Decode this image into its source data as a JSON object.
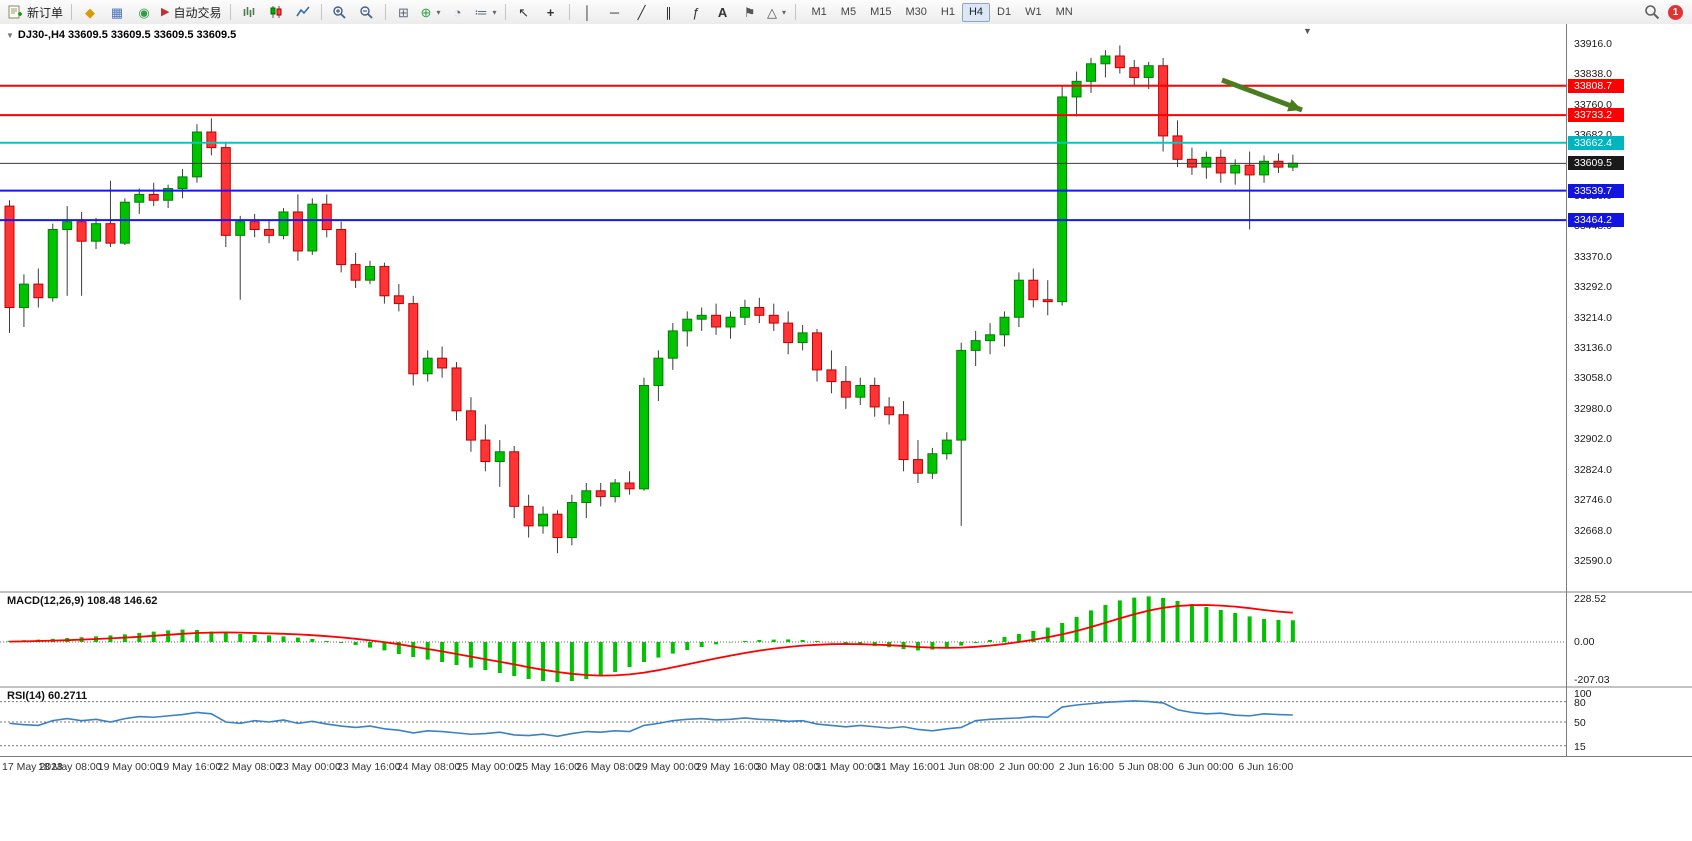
{
  "toolbar": {
    "new_order_label": "新订单",
    "auto_trading_label": "自动交易",
    "timeframes": [
      "M1",
      "M5",
      "M15",
      "M30",
      "H1",
      "H4",
      "D1",
      "W1",
      "MN"
    ],
    "active_timeframe": "H4",
    "notification_count": "1",
    "glyphs": {
      "metaeditor": "◆",
      "profiles": "▦",
      "help": "◉",
      "autoplay": "▶",
      "tile_windows": "⊞",
      "new_chart": "⊕",
      "clock": "◔",
      "indicator_list": "≔",
      "cursor": "↖",
      "crosshair": "+",
      "vline": "│",
      "hline": "─",
      "trendline": "╱",
      "channel": "∥",
      "fibonacci": "ƒ",
      "text_tool": "A",
      "label_tool": "⚑",
      "shapes": "△",
      "dropdown": "▾",
      "collapse": "▼",
      "shift_marker": "▼"
    }
  },
  "chart_data": {
    "type": "candlestick",
    "symbol": "DJ30-",
    "timeframe": "H4",
    "header": "DJ30-,H4 33609.5 33609.5 33609.5 33609.5",
    "y_range": {
      "top": 33967,
      "bottom": 32513
    },
    "price_axis": [
      "33916.0",
      "33838.0",
      "33760.0",
      "33682.0",
      "33604.0",
      "33526.0",
      "33448.0",
      "33370.0",
      "33292.0",
      "33214.0",
      "33136.0",
      "33058.0",
      "32980.0",
      "32902.0",
      "32824.0",
      "32746.0",
      "32668.0",
      "32590.0"
    ],
    "x_labels": [
      "17 May 2023",
      "18 May 08:00",
      "19 May 00:00",
      "19 May 16:00",
      "22 May 08:00",
      "23 May 00:00",
      "23 May 16:00",
      "24 May 08:00",
      "25 May 00:00",
      "25 May 16:00",
      "26 May 08:00",
      "29 May 00:00",
      "29 May 16:00",
      "30 May 08:00",
      "31 May 00:00",
      "31 May 16:00",
      "1 Jun 08:00",
      "2 Jun 00:00",
      "2 Jun 16:00",
      "5 Jun 08:00",
      "6 Jun 00:00",
      "6 Jun 16:00"
    ],
    "style": {
      "up_color": "#00c300",
      "down_color": "#ff3434",
      "up_border": "#008000",
      "down_border": "#c00000",
      "wick_color": "#3c3c3c"
    },
    "candles": [
      [
        33500,
        33515,
        33175,
        33240
      ],
      [
        33240,
        33325,
        33190,
        33300
      ],
      [
        33300,
        33340,
        33240,
        33265
      ],
      [
        33265,
        33455,
        33255,
        33440
      ],
      [
        33440,
        33500,
        33270,
        33460
      ],
      [
        33460,
        33485,
        33270,
        33410
      ],
      [
        33410,
        33470,
        33390,
        33455
      ],
      [
        33455,
        33565,
        33395,
        33405
      ],
      [
        33405,
        33520,
        33400,
        33510
      ],
      [
        33510,
        33545,
        33480,
        33530
      ],
      [
        33530,
        33560,
        33500,
        33515
      ],
      [
        33515,
        33555,
        33495,
        33545
      ],
      [
        33545,
        33595,
        33520,
        33575
      ],
      [
        33575,
        33710,
        33560,
        33690
      ],
      [
        33690,
        33725,
        33630,
        33650
      ],
      [
        33650,
        33665,
        33395,
        33425
      ],
      [
        33425,
        33475,
        33260,
        33460
      ],
      [
        33460,
        33480,
        33420,
        33440
      ],
      [
        33440,
        33465,
        33405,
        33425
      ],
      [
        33425,
        33495,
        33415,
        33485
      ],
      [
        33485,
        33530,
        33360,
        33385
      ],
      [
        33385,
        33520,
        33375,
        33505
      ],
      [
        33505,
        33530,
        33420,
        33440
      ],
      [
        33440,
        33460,
        33330,
        33350
      ],
      [
        33350,
        33380,
        33290,
        33310
      ],
      [
        33310,
        33360,
        33300,
        33345
      ],
      [
        33345,
        33355,
        33250,
        33270
      ],
      [
        33270,
        33300,
        33230,
        33250
      ],
      [
        33250,
        33270,
        33040,
        33070
      ],
      [
        33070,
        33130,
        33050,
        33110
      ],
      [
        33110,
        33140,
        33060,
        33085
      ],
      [
        33085,
        33100,
        32950,
        32975
      ],
      [
        32975,
        33010,
        32870,
        32900
      ],
      [
        32900,
        32940,
        32820,
        32845
      ],
      [
        32845,
        32900,
        32780,
        32870
      ],
      [
        32870,
        32885,
        32700,
        32730
      ],
      [
        32730,
        32760,
        32650,
        32680
      ],
      [
        32680,
        32730,
        32660,
        32710
      ],
      [
        32710,
        32720,
        32610,
        32650
      ],
      [
        32650,
        32760,
        32630,
        32740
      ],
      [
        32740,
        32790,
        32700,
        32770
      ],
      [
        32770,
        32790,
        32730,
        32755
      ],
      [
        32755,
        32800,
        32740,
        32790
      ],
      [
        32790,
        32820,
        32760,
        32775
      ],
      [
        32775,
        33060,
        32770,
        33040
      ],
      [
        33040,
        33130,
        33000,
        33110
      ],
      [
        33110,
        33200,
        33080,
        33180
      ],
      [
        33180,
        33230,
        33140,
        33210
      ],
      [
        33210,
        33240,
        33180,
        33220
      ],
      [
        33220,
        33250,
        33170,
        33190
      ],
      [
        33190,
        33230,
        33160,
        33215
      ],
      [
        33215,
        33260,
        33195,
        33240
      ],
      [
        33240,
        33265,
        33200,
        33220
      ],
      [
        33220,
        33250,
        33180,
        33200
      ],
      [
        33200,
        33230,
        33120,
        33150
      ],
      [
        33150,
        33195,
        33130,
        33175
      ],
      [
        33175,
        33185,
        33050,
        33080
      ],
      [
        33080,
        33130,
        33020,
        33050
      ],
      [
        33050,
        33090,
        32980,
        33010
      ],
      [
        33010,
        33060,
        32990,
        33040
      ],
      [
        33040,
        33060,
        32960,
        32985
      ],
      [
        32985,
        33010,
        32940,
        32965
      ],
      [
        32965,
        33000,
        32820,
        32850
      ],
      [
        32850,
        32900,
        32790,
        32815
      ],
      [
        32815,
        32880,
        32800,
        32865
      ],
      [
        32865,
        32920,
        32850,
        32900
      ],
      [
        32900,
        33150,
        32680,
        33130
      ],
      [
        33130,
        33180,
        33090,
        33155
      ],
      [
        33155,
        33200,
        33120,
        33170
      ],
      [
        33170,
        33230,
        33140,
        33215
      ],
      [
        33215,
        33330,
        33190,
        33310
      ],
      [
        33310,
        33340,
        33240,
        33260
      ],
      [
        33260,
        33310,
        33220,
        33255
      ],
      [
        33255,
        33810,
        33245,
        33780
      ],
      [
        33780,
        33845,
        33730,
        33820
      ],
      [
        33820,
        33880,
        33790,
        33865
      ],
      [
        33865,
        33900,
        33830,
        33885
      ],
      [
        33885,
        33912,
        33840,
        33855
      ],
      [
        33855,
        33875,
        33810,
        33830
      ],
      [
        33830,
        33870,
        33800,
        33860
      ],
      [
        33860,
        33880,
        33640,
        33680
      ],
      [
        33680,
        33720,
        33600,
        33620
      ],
      [
        33620,
        33650,
        33580,
        33600
      ],
      [
        33600,
        33640,
        33570,
        33625
      ],
      [
        33625,
        33645,
        33560,
        33585
      ],
      [
        33585,
        33620,
        33555,
        33605
      ],
      [
        33605,
        33640,
        33440,
        33580
      ],
      [
        33580,
        33630,
        33560,
        33615
      ],
      [
        33615,
        33635,
        33585,
        33600
      ],
      [
        33600,
        33632,
        33590,
        33610
      ]
    ],
    "levels": [
      {
        "name": "resistance-upper",
        "price": 33808.7,
        "label": "33808.7",
        "color": "#ff0000",
        "width": 2,
        "tag_bg": "#ff0000"
      },
      {
        "name": "resistance-lower",
        "price": 33733.2,
        "label": "33733.2",
        "color": "#ff0000",
        "width": 2,
        "tag_bg": "#ff0000"
      },
      {
        "name": "pivot-cyan",
        "price": 33662.4,
        "label": "33662.4",
        "color": "#00c8c8",
        "width": 2,
        "tag_bg": "#00b4c0"
      },
      {
        "name": "current-price",
        "price": 33609.5,
        "label": "33609.5",
        "color": "#3a3a3a",
        "width": 1,
        "tag_bg": "#1a1a1a"
      },
      {
        "name": "support-upper",
        "price": 33539.7,
        "label": "33539.7",
        "color": "#1414ff",
        "width": 2,
        "tag_bg": "#1414e0"
      },
      {
        "name": "support-lower",
        "price": 33464.2,
        "label": "33464.2",
        "color": "#1414ff",
        "width": 2,
        "tag_bg": "#1414e0"
      }
    ],
    "annotation_arrow": {
      "color": "#4a7d1f",
      "width": 5,
      "from": [
        1222,
        56
      ],
      "to": [
        1302,
        86
      ]
    },
    "indicators": {
      "macd": {
        "label": "MACD(12,26,9) 108.48 146.62",
        "axis": [
          "228.52",
          "0.00",
          "-207.03"
        ],
        "range": {
          "top": 245,
          "bottom": -220
        },
        "histogram_color": "#00c300",
        "signal_color": "#ff0000",
        "histogram": [
          6,
          9,
          12,
          16,
          20,
          24,
          28,
          33,
          38,
          45,
          52,
          58,
          62,
          60,
          52,
          45,
          40,
          36,
          33,
          28,
          22,
          15,
          5,
          -5,
          -15,
          -28,
          -42,
          -60,
          -75,
          -88,
          -100,
          -115,
          -128,
          -140,
          -155,
          -170,
          -185,
          -195,
          -200,
          -195,
          -185,
          -170,
          -150,
          -125,
          -100,
          -78,
          -58,
          -40,
          -25,
          -12,
          -2,
          5,
          10,
          12,
          13,
          10,
          5,
          -2,
          -8,
          -14,
          -20,
          -26,
          -35,
          -42,
          -38,
          -30,
          -18,
          -5,
          10,
          25,
          40,
          55,
          72,
          95,
          125,
          158,
          185,
          208,
          222,
          228,
          220,
          205,
          190,
          175,
          160,
          145,
          128,
          115,
          110,
          108.5
        ],
        "signal": [
          2,
          3,
          5,
          7,
          9,
          12,
          15,
          18,
          22,
          26,
          31,
          36,
          41,
          45,
          47,
          48,
          47,
          45,
          43,
          41,
          38,
          34,
          29,
          23,
          16,
          8,
          -1,
          -11,
          -23,
          -35,
          -47,
          -60,
          -73,
          -86,
          -99,
          -112,
          -126,
          -139,
          -150,
          -159,
          -165,
          -168,
          -167,
          -162,
          -153,
          -141,
          -127,
          -112,
          -97,
          -82,
          -68,
          -55,
          -43,
          -33,
          -25,
          -18,
          -14,
          -11,
          -10,
          -11,
          -13,
          -16,
          -20,
          -25,
          -28,
          -29,
          -28,
          -24,
          -18,
          -10,
          0,
          11,
          24,
          38,
          55,
          75,
          96,
          118,
          139,
          157,
          171,
          180,
          184,
          185,
          182,
          177,
          169,
          160,
          152,
          146.6
        ]
      },
      "rsi": {
        "label": "RSI(14) 60.2711",
        "axis_labels": [
          "100",
          "80",
          "50",
          "15"
        ],
        "level_lines": [
          80,
          50,
          15
        ],
        "line_color": "#3b82c4",
        "values": [
          48,
          46,
          45,
          52,
          55,
          52,
          54,
          50,
          55,
          58,
          57,
          59,
          61,
          64,
          62,
          50,
          48,
          52,
          50,
          53,
          48,
          51,
          47,
          44,
          42,
          44,
          40,
          38,
          34,
          37,
          36,
          34,
          32,
          33,
          35,
          31,
          30,
          32,
          29,
          33,
          36,
          35,
          37,
          36,
          45,
          48,
          52,
          54,
          55,
          53,
          54,
          56,
          54,
          53,
          51,
          52,
          47,
          45,
          43,
          45,
          43,
          41,
          43,
          39,
          37,
          40,
          42,
          52,
          54,
          55,
          56,
          58,
          57,
          72,
          75,
          77,
          79,
          80,
          81,
          80,
          78,
          68,
          64,
          62,
          63,
          60,
          59,
          62,
          61,
          60.3
        ]
      }
    }
  }
}
